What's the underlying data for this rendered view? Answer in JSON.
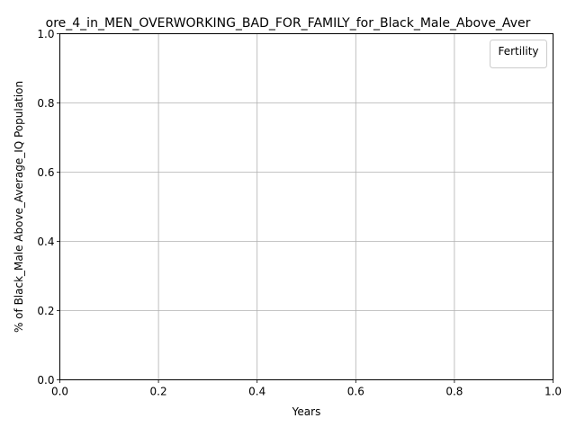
{
  "chart_data": {
    "type": "line",
    "title": "ore_4_in_MEN_OVERWORKING_BAD_FOR_FAMILY_for_Black_Male_Above_Aver",
    "xlabel": "Years",
    "ylabel": "% of Black_Male Above_Average_IQ Population",
    "xlim": [
      0.0,
      1.0
    ],
    "ylim": [
      0.0,
      1.0
    ],
    "x_ticks": [
      "0.0",
      "0.2",
      "0.4",
      "0.6",
      "0.8",
      "1.0"
    ],
    "y_ticks": [
      "0.0",
      "0.2",
      "0.4",
      "0.6",
      "0.8",
      "1.0"
    ],
    "grid": true,
    "legend": {
      "title": "Fertility",
      "placement": "top-right",
      "entries": []
    },
    "series": []
  }
}
